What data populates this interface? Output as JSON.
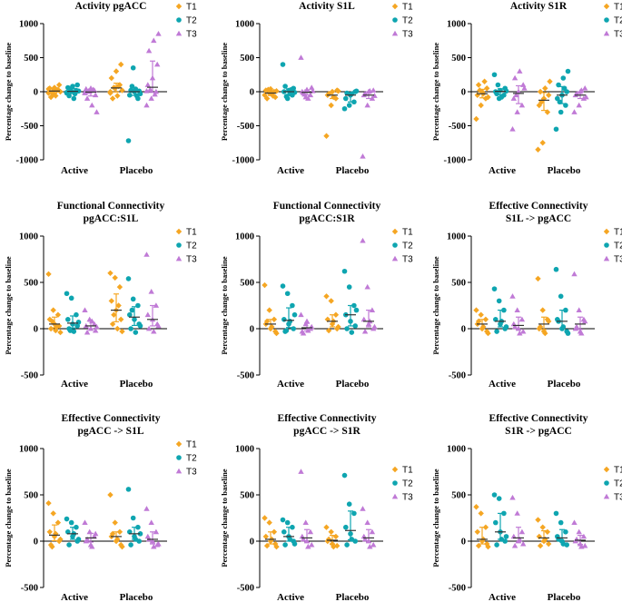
{
  "colors": {
    "T1": "#f5a623",
    "T2": "#0ea5b0",
    "T3": "#c07ad6",
    "axis": "#000000",
    "summary": "#333333"
  },
  "legend": [
    "T1",
    "T2",
    "T3"
  ],
  "chart_data": [
    {
      "type": "scatter",
      "title": [
        "Activity pgACC"
      ],
      "ylabel": "Percentage change to baseline",
      "ylim": [
        -1000,
        1000
      ],
      "yticks": [
        "1000",
        "500",
        "0",
        "-500",
        "-1000"
      ],
      "categories": [
        "Active",
        "Placebo"
      ],
      "series": [
        {
          "name": "T1",
          "groups": [
            [
              -20,
              10,
              30,
              50,
              60,
              100,
              -80,
              -60,
              0,
              -10,
              20,
              40,
              -40
            ],
            [
              0,
              50,
              100,
              200,
              300,
              400,
              -100,
              -60,
              20,
              60,
              80,
              -20
            ]
          ]
        },
        {
          "name": "T2",
          "groups": [
            [
              -10,
              0,
              20,
              60,
              80,
              100,
              -60,
              -100,
              10,
              40,
              -30,
              -20
            ],
            [
              -720,
              350,
              -100,
              -50,
              0,
              10,
              20,
              40,
              -30,
              80,
              -60
            ]
          ]
        },
        {
          "name": "T3",
          "groups": [
            [
              -20,
              0,
              20,
              40,
              50,
              -50,
              -100,
              -200,
              -300,
              10,
              30,
              -10
            ],
            [
              -200,
              -100,
              0,
              100,
              200,
              400,
              600,
              750,
              850,
              30,
              -40,
              10
            ]
          ]
        }
      ]
    },
    {
      "type": "scatter",
      "title": [
        "Activity S1L"
      ],
      "ylabel": "Percentage change to baseline",
      "ylim": [
        -1000,
        1000
      ],
      "yticks": [
        "1000",
        "500",
        "0",
        "-500",
        "-1000"
      ],
      "categories": [
        "Active",
        "Placebo"
      ],
      "series": [
        {
          "name": "T1",
          "groups": [
            [
              -50,
              -20,
              0,
              20,
              40,
              -80,
              -100,
              -30,
              10,
              30,
              -60
            ],
            [
              -650,
              -200,
              -100,
              -50,
              0,
              20,
              -30,
              -80,
              10
            ]
          ]
        },
        {
          "name": "T2",
          "groups": [
            [
              400,
              -100,
              -50,
              0,
              20,
              50,
              80,
              -30,
              -10,
              -70,
              30
            ],
            [
              -250,
              -200,
              -150,
              -100,
              -50,
              0,
              -20,
              -30,
              10
            ]
          ]
        },
        {
          "name": "T3",
          "groups": [
            [
              500,
              -80,
              -50,
              0,
              30,
              60,
              -20,
              -100,
              10,
              -40
            ],
            [
              -950,
              -200,
              -100,
              -50,
              0,
              20,
              -30,
              10,
              -60
            ]
          ]
        }
      ]
    },
    {
      "type": "scatter",
      "title": [
        "Activity S1R"
      ],
      "ylabel": "Percentage change to baseline",
      "ylim": [
        -1000,
        1000
      ],
      "yticks": [
        "1000",
        "500",
        "0",
        "-500",
        "-1000"
      ],
      "categories": [
        "Active",
        "Placebo"
      ],
      "series": [
        {
          "name": "T1",
          "groups": [
            [
              -400,
              -200,
              -100,
              -50,
              0,
              50,
              100,
              -30,
              -80,
              20,
              150
            ],
            [
              -850,
              -750,
              -300,
              -200,
              -100,
              -50,
              0,
              50,
              150,
              -150
            ]
          ]
        },
        {
          "name": "T2",
          "groups": [
            [
              250,
              -100,
              -50,
              0,
              20,
              50,
              -30,
              -80,
              10,
              100
            ],
            [
              -550,
              -300,
              -200,
              -100,
              -50,
              0,
              100,
              200,
              300,
              -150,
              50
            ]
          ]
        },
        {
          "name": "T3",
          "groups": [
            [
              -550,
              -300,
              -200,
              -100,
              0,
              100,
              200,
              300,
              50,
              -50
            ],
            [
              -300,
              -200,
              -100,
              -50,
              0,
              50,
              -30,
              20,
              -80
            ]
          ]
        }
      ]
    },
    {
      "type": "scatter",
      "title": [
        "Functional Connectivity",
        "pgACC:S1L"
      ],
      "ylabel": "Percentage change to baseline",
      "ylim": [
        -500,
        1000
      ],
      "yticks": [
        "1000",
        "500",
        "0",
        "-500"
      ],
      "categories": [
        "Active",
        "Placebo"
      ],
      "series": [
        {
          "name": "T1",
          "groups": [
            [
              590,
              200,
              150,
              100,
              50,
              30,
              0,
              -20,
              -40,
              80,
              20
            ],
            [
              600,
              550,
              450,
              300,
              200,
              100,
              50,
              0,
              -30,
              150,
              250
            ]
          ]
        },
        {
          "name": "T2",
          "groups": [
            [
              380,
              330,
              150,
              100,
              50,
              30,
              0,
              -30,
              70,
              -20
            ],
            [
              540,
              320,
              250,
              150,
              100,
              50,
              0,
              -40,
              30,
              200
            ]
          ]
        },
        {
          "name": "T3",
          "groups": [
            [
              200,
              100,
              50,
              30,
              0,
              -20,
              -40,
              80,
              20
            ],
            [
              800,
              400,
              250,
              150,
              100,
              50,
              0,
              -30,
              30
            ]
          ]
        }
      ]
    },
    {
      "type": "scatter",
      "title": [
        "Functional Connectivity",
        "pgACC:S1R"
      ],
      "ylabel": "Percentage change to baseline",
      "ylim": [
        -500,
        1000
      ],
      "yticks": [
        "1000",
        "500",
        "0",
        "-500"
      ],
      "categories": [
        "Active",
        "Placebo"
      ],
      "series": [
        {
          "name": "T1",
          "groups": [
            [
              470,
              200,
              100,
              50,
              0,
              -30,
              80,
              20,
              -50
            ],
            [
              350,
              300,
              150,
              100,
              50,
              0,
              -20,
              80,
              20
            ]
          ]
        },
        {
          "name": "T2",
          "groups": [
            [
              460,
              380,
              250,
              100,
              50,
              0,
              -30,
              80,
              150,
              -20
            ],
            [
              620,
              450,
              250,
              150,
              80,
              30,
              0,
              -40,
              200
            ]
          ]
        },
        {
          "name": "T3",
          "groups": [
            [
              150,
              50,
              0,
              -30,
              80,
              20,
              -50,
              -20
            ],
            [
              950,
              450,
              200,
              100,
              50,
              0,
              -30,
              80,
              20
            ]
          ]
        }
      ]
    },
    {
      "type": "scatter",
      "title": [
        "Effective Connectivity",
        "S1L -> pgACC"
      ],
      "ylabel": "Percentage change to baseline",
      "ylim": [
        -500,
        1000
      ],
      "yticks": [
        "1000",
        "500",
        "0",
        "-500"
      ],
      "categories": [
        "Active",
        "Placebo"
      ],
      "series": [
        {
          "name": "T1",
          "groups": [
            [
              200,
              150,
              100,
              50,
              0,
              -30,
              80,
              20,
              -50
            ],
            [
              540,
              200,
              100,
              0,
              -30,
              80,
              20,
              -50
            ]
          ]
        },
        {
          "name": "T2",
          "groups": [
            [
              430,
              300,
              200,
              100,
              50,
              0,
              -30,
              80,
              20
            ],
            [
              640,
              350,
              200,
              100,
              0,
              -30,
              80,
              20,
              -50
            ]
          ]
        },
        {
          "name": "T3",
          "groups": [
            [
              350,
              200,
              100,
              50,
              0,
              -30,
              20,
              -50
            ],
            [
              590,
              200,
              100,
              0,
              -30,
              80,
              20,
              -50
            ]
          ]
        }
      ]
    },
    {
      "type": "scatter",
      "title": [
        "Effective Connectivity",
        "pgACC -> S1L"
      ],
      "ylabel": "Percentage change to baseline",
      "ylim": [
        -500,
        1000
      ],
      "yticks": [
        "1000",
        "500",
        "0",
        "-500"
      ],
      "categories": [
        "Active",
        "Placebo"
      ],
      "series": [
        {
          "name": "T1",
          "groups": [
            [
              410,
              300,
              200,
              100,
              50,
              0,
              -40,
              80,
              20,
              -60
            ],
            [
              500,
              200,
              100,
              50,
              0,
              -40,
              80,
              20,
              -60
            ]
          ]
        },
        {
          "name": "T2",
          "groups": [
            [
              240,
              200,
              150,
              100,
              50,
              0,
              -40,
              80,
              20
            ],
            [
              560,
              250,
              150,
              100,
              50,
              0,
              -40,
              20,
              80
            ]
          ]
        },
        {
          "name": "T3",
          "groups": [
            [
              200,
              100,
              50,
              0,
              -40,
              80,
              20,
              -60
            ],
            [
              350,
              200,
              100,
              50,
              0,
              -40,
              20,
              -60,
              -30
            ]
          ]
        }
      ]
    },
    {
      "type": "scatter",
      "title": [
        "Effective Connectivity",
        "pgACC -> S1R"
      ],
      "ylabel": "Percentage change to baseline",
      "ylim": [
        -500,
        1000
      ],
      "yticks": [
        "1000",
        "500",
        "0",
        "-500"
      ],
      "categories": [
        "Active",
        "Placebo"
      ],
      "series": [
        {
          "name": "T1",
          "groups": [
            [
              250,
              200,
              100,
              50,
              0,
              -30,
              -50,
              20,
              -60
            ],
            [
              150,
              100,
              50,
              0,
              -30,
              -50,
              20,
              -60
            ]
          ]
        },
        {
          "name": "T2",
          "groups": [
            [
              230,
              200,
              150,
              100,
              50,
              0,
              -40,
              20,
              -30
            ],
            [
              710,
              400,
              300,
              150,
              80,
              0,
              -40,
              20
            ]
          ]
        },
        {
          "name": "T3",
          "groups": [
            [
              750,
              200,
              100,
              50,
              0,
              -40,
              20,
              -60
            ],
            [
              350,
              200,
              100,
              50,
              0,
              -40,
              20,
              -60
            ]
          ]
        }
      ]
    },
    {
      "type": "scatter",
      "title": [
        "Effective Connectivity",
        "S1R -> pgACC"
      ],
      "ylabel": "Percentage change to baseline",
      "ylim": [
        -500,
        1000
      ],
      "yticks": [
        "1000",
        "500",
        "0",
        "-500"
      ],
      "categories": [
        "Active",
        "Placebo"
      ],
      "series": [
        {
          "name": "T1",
          "groups": [
            [
              370,
              300,
              150,
              100,
              0,
              -30,
              -50,
              20,
              -60
            ],
            [
              230,
              150,
              100,
              50,
              0,
              -30,
              -50,
              20
            ]
          ]
        },
        {
          "name": "T2",
          "groups": [
            [
              500,
              460,
              300,
              200,
              100,
              0,
              -40,
              20,
              50
            ],
            [
              300,
              200,
              100,
              50,
              0,
              -40,
              20,
              -30
            ]
          ]
        },
        {
          "name": "T3",
          "groups": [
            [
              470,
              300,
              100,
              50,
              0,
              -30,
              -50,
              20
            ],
            [
              200,
              100,
              50,
              0,
              -30,
              -50,
              20,
              -60
            ]
          ]
        }
      ]
    }
  ]
}
